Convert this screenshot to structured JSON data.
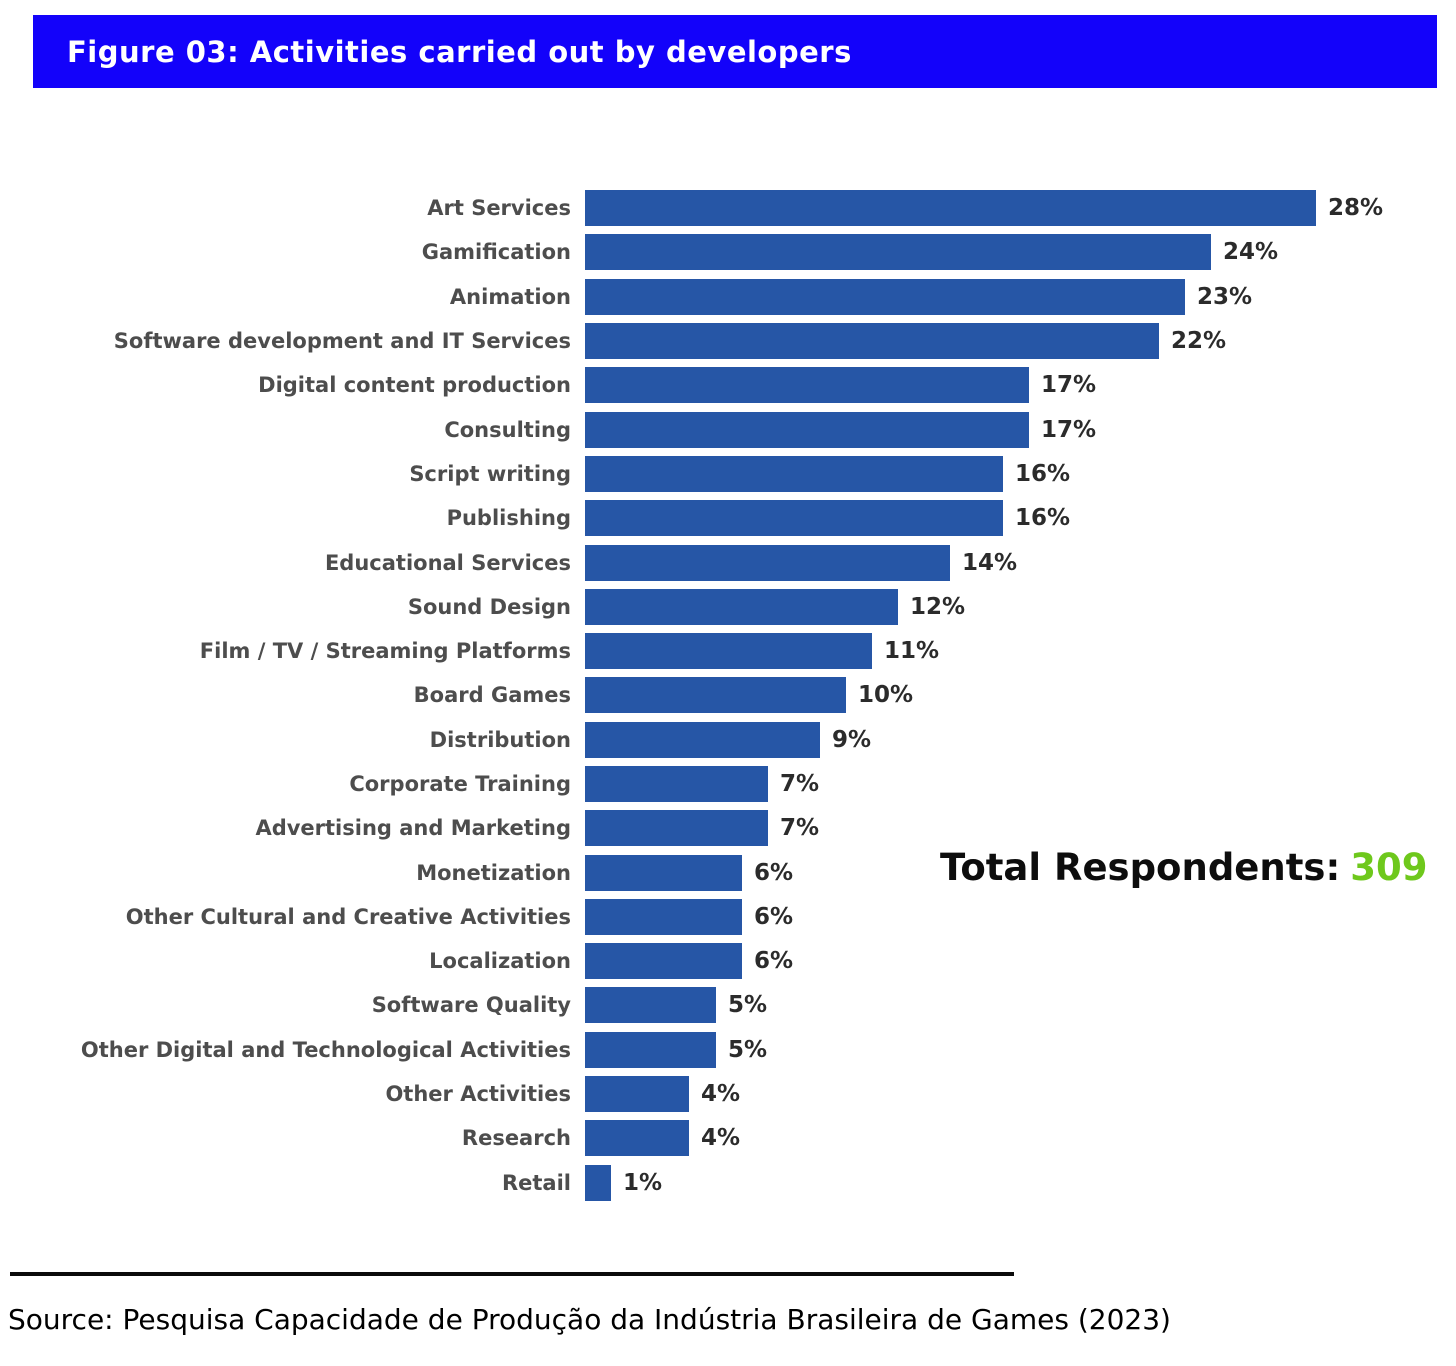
{
  "title_bar": {
    "text": "Figure 03: Activities carried out by developers",
    "background_color": "#1302fa",
    "text_color": "#ffffff"
  },
  "chart_data": {
    "type": "bar",
    "orientation": "horizontal",
    "title": "Figure 03: Activities carried out by developers",
    "categories": [
      "Art Services",
      "Gamification",
      "Animation",
      "Software development and IT Services",
      "Digital content production",
      "Consulting",
      "Script writing",
      "Publishing",
      "Educational Services",
      "Sound Design",
      "Film / TV / Streaming Platforms",
      "Board Games",
      "Distribution",
      "Corporate Training",
      "Advertising and Marketing",
      "Monetization",
      "Other Cultural and Creative Activities",
      "Localization",
      "Software Quality",
      "Other Digital and Technological Activities",
      "Other Activities",
      "Research",
      "Retail"
    ],
    "values": [
      28,
      24,
      23,
      22,
      17,
      17,
      16,
      16,
      14,
      12,
      11,
      10,
      9,
      7,
      7,
      6,
      6,
      6,
      5,
      5,
      4,
      4,
      1
    ],
    "value_suffix": "%",
    "xlim": [
      0,
      30
    ],
    "grid": false,
    "legend": "none",
    "bar_color": "#2656a6",
    "category_label_color": "#4d4d4d",
    "value_label_color": "#2b2b2b"
  },
  "total_respondents": {
    "label": "Total Respondents:",
    "value": "309",
    "value_color": "#6ec81c"
  },
  "source": {
    "text": "Source: Pesquisa Capacidade de Produção da Indústria Brasileira de Games (2023)"
  }
}
